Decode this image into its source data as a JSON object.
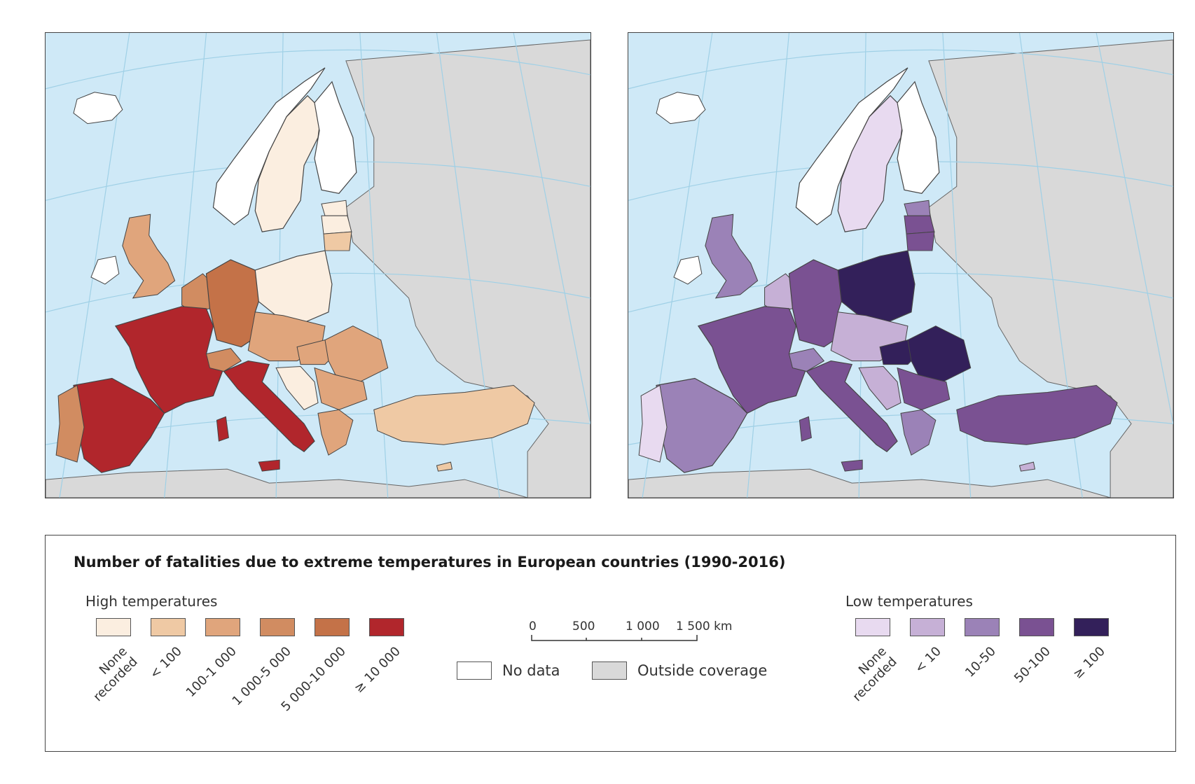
{
  "legend": {
    "title": "Number of fatalities due to extreme temperatures in European countries (1990-2016)",
    "high": {
      "label": "High temperatures",
      "classes": [
        {
          "label": "None recorded",
          "color": "#fbeee0"
        },
        {
          "label": "< 100",
          "color": "#efc9a4"
        },
        {
          "label": "100-1 000",
          "color": "#e0a57c"
        },
        {
          "label": "1 000-5 000",
          "color": "#d18c61"
        },
        {
          "label": "5 000-10 000",
          "color": "#c47248"
        },
        {
          "label": "≥ 10 000",
          "color": "#b1262c"
        }
      ]
    },
    "low": {
      "label": "Low temperatures",
      "classes": [
        {
          "label": "None recorded",
          "color": "#e8daf0"
        },
        {
          "label": "< 10",
          "color": "#c6b0d6"
        },
        {
          "label": "10-50",
          "color": "#9b82b7"
        },
        {
          "label": "50-100",
          "color": "#7a5192"
        },
        {
          "label": "≥ 100",
          "color": "#33205a"
        }
      ]
    },
    "no_data": {
      "label": "No data",
      "color": "#ffffff"
    },
    "outside": {
      "label": "Outside coverage",
      "color": "#d9d9d9"
    },
    "scale": {
      "ticks": [
        "0",
        "500",
        "1 000",
        "1 500 km"
      ]
    }
  },
  "colors": {
    "sea": "#cfe9f7",
    "graticule": "#9fd0e6",
    "border": "#555555"
  }
}
